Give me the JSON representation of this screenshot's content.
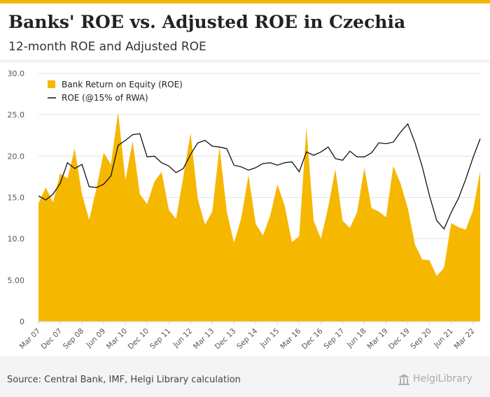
{
  "header": {
    "title": "Banks' ROE vs. Adjusted ROE in Czechia",
    "subtitle": "12-month ROE and Adjusted ROE"
  },
  "footer": {
    "source": "Source: Central Bank, IMF, Helgi Library calculation",
    "logo_text": "HelgiLibrary"
  },
  "colors": {
    "accent": "#f2b705",
    "area": "#f6b700",
    "line": "#111111"
  },
  "chart_data": {
    "type": "area",
    "title": "",
    "xlabel": "",
    "ylabel": "",
    "ylim": [
      0,
      30
    ],
    "yticks": [
      "0",
      "5.00",
      "10.0",
      "15.0",
      "20.0",
      "25.0",
      "30.0"
    ],
    "grid": true,
    "legend_position": "top-left",
    "x": [
      "Mar 07",
      "Jun 07",
      "Sep 07",
      "Dec 07",
      "Mar 08",
      "Jun 08",
      "Sep 08",
      "Dec 08",
      "Mar 09",
      "Jun 09",
      "Sep 09",
      "Dec 09",
      "Mar 10",
      "Jun 10",
      "Sep 10",
      "Dec 10",
      "Mar 11",
      "Jun 11",
      "Sep 11",
      "Dec 11",
      "Mar 12",
      "Jun 12",
      "Sep 12",
      "Dec 12",
      "Mar 13",
      "Jun 13",
      "Sep 13",
      "Dec 13",
      "Mar 14",
      "Jun 14",
      "Sep 14",
      "Dec 14",
      "Mar 15",
      "Jun 15",
      "Sep 15",
      "Dec 15",
      "Mar 16",
      "Jun 16",
      "Sep 16",
      "Dec 16",
      "Mar 17",
      "Jun 17",
      "Sep 17",
      "Dec 17",
      "Mar 18",
      "Jun 18",
      "Sep 18",
      "Dec 18",
      "Mar 19",
      "Jun 19",
      "Sep 19",
      "Dec 19",
      "Mar 20",
      "Jun 20",
      "Sep 20",
      "Dec 20",
      "Mar 21",
      "Jun 21",
      "Sep 21",
      "Dec 21",
      "Mar 22",
      "Jun 22"
    ],
    "xtick_labels": [
      "Mar 07",
      "Dec 07",
      "Sep 08",
      "Jun 09",
      "Mar 10",
      "Dec 10",
      "Sep 11",
      "Jun 12",
      "Mar 13",
      "Dec 13",
      "Sep 14",
      "Jun 15",
      "Mar 16",
      "Dec 16",
      "Sep 17",
      "Jun 18",
      "Mar 19",
      "Dec 19",
      "Sep 20",
      "Jun 21",
      "Mar 22"
    ],
    "series": [
      {
        "name": "Bank Return on Equity (ROE)",
        "type": "area",
        "values": [
          14.3,
          16.2,
          14.4,
          17.9,
          17.3,
          20.9,
          15.4,
          12.3,
          16.1,
          20.4,
          19.0,
          25.3,
          17.1,
          21.8,
          15.4,
          14.2,
          16.9,
          18.1,
          13.5,
          12.4,
          17.5,
          22.8,
          14.8,
          11.7,
          13.3,
          21.1,
          13.3,
          9.5,
          12.5,
          17.7,
          11.8,
          10.4,
          12.8,
          16.6,
          14.0,
          9.6,
          10.3,
          23.4,
          12.2,
          10.0,
          13.8,
          18.4,
          12.2,
          11.3,
          13.2,
          18.6,
          13.7,
          13.3,
          12.6,
          18.8,
          16.7,
          13.7,
          9.3,
          7.5,
          7.4,
          5.5,
          6.5,
          11.9,
          11.4,
          11.1,
          13.4,
          18.2
        ]
      },
      {
        "name": "ROE (@15% of RWA)",
        "type": "line",
        "values": [
          15.2,
          14.7,
          15.4,
          16.7,
          19.2,
          18.5,
          19.0,
          16.3,
          16.2,
          16.6,
          17.6,
          21.3,
          21.9,
          22.6,
          22.7,
          19.9,
          20.0,
          19.2,
          18.8,
          18.0,
          18.5,
          20.2,
          21.6,
          21.9,
          21.2,
          21.1,
          20.9,
          18.9,
          18.7,
          18.3,
          18.6,
          19.1,
          19.2,
          18.9,
          19.2,
          19.3,
          18.1,
          20.5,
          20.1,
          20.5,
          21.1,
          19.7,
          19.5,
          20.6,
          19.9,
          19.9,
          20.4,
          21.6,
          21.5,
          21.7,
          22.9,
          23.9,
          21.6,
          18.7,
          15.2,
          12.2,
          11.2,
          13.2,
          14.9,
          17.2,
          19.8,
          22.1
        ]
      }
    ]
  }
}
